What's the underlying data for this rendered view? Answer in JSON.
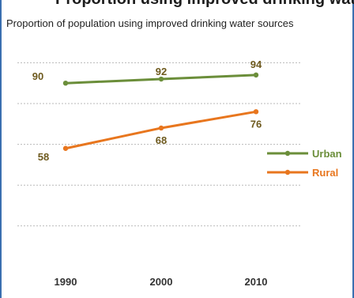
{
  "title_fragment": "Proportion using improved drinking water sources",
  "subtitle": "Proportion of population using improved drinking water sources",
  "colors": {
    "urban": "#6b8e3a",
    "rural": "#e8761e",
    "grid": "#b9b9b9",
    "frame": "#3a6fb0"
  },
  "chart_data": {
    "type": "line",
    "x": [
      "1990",
      "2000",
      "2010"
    ],
    "series": [
      {
        "name": "Urban",
        "values": [
          90,
          92,
          94
        ]
      },
      {
        "name": "Rural",
        "values": [
          58,
          68,
          76
        ]
      }
    ],
    "ylim": [
      0,
      100
    ],
    "grid": true,
    "legend": "right"
  }
}
